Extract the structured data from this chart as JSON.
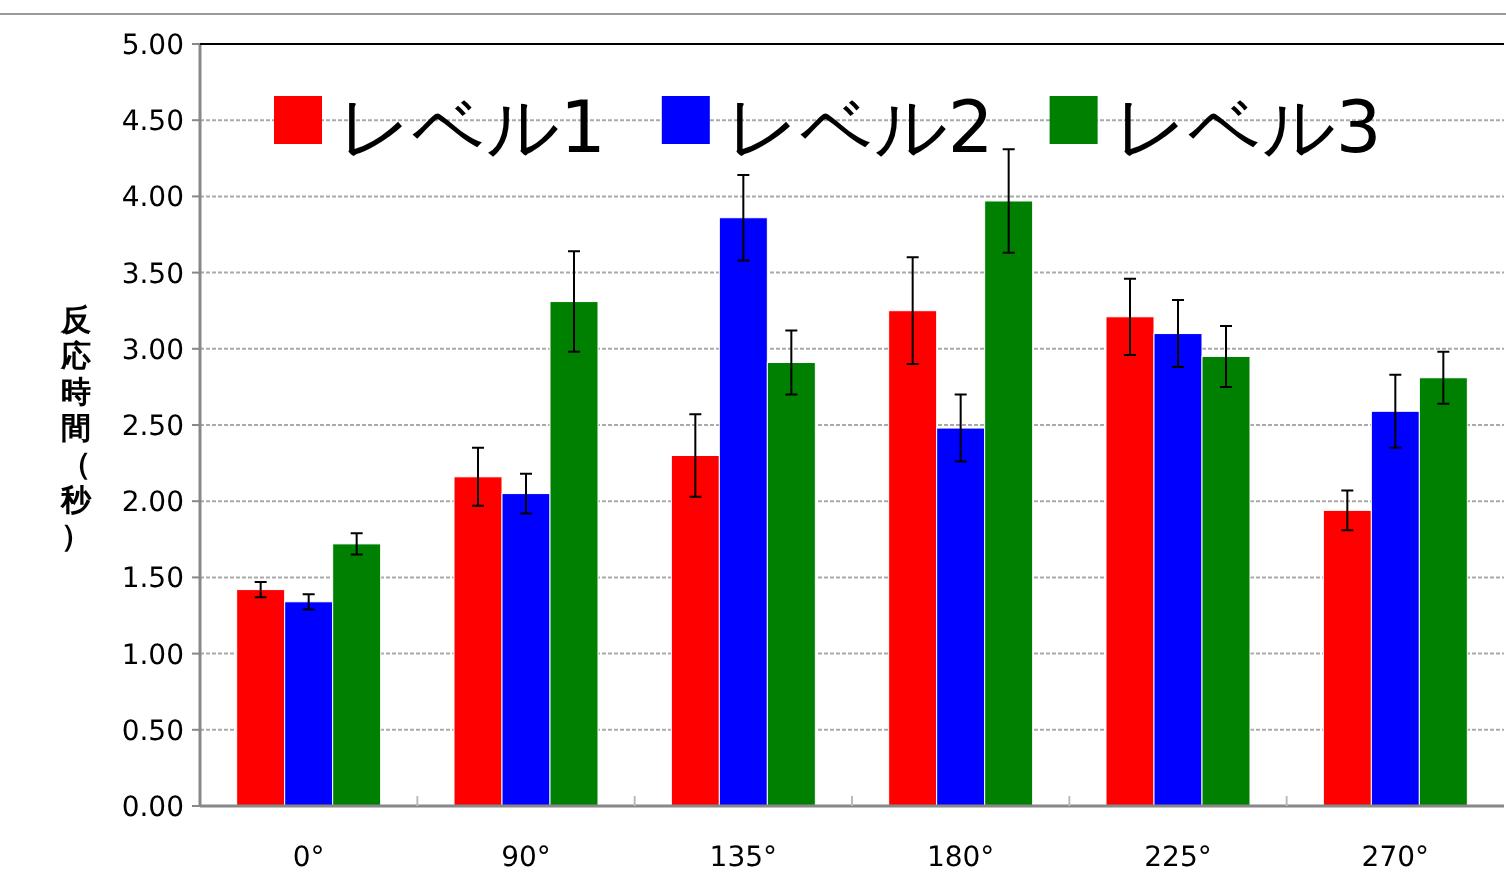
{
  "chart_data": {
    "type": "bar",
    "ylabel": "反応時間（秒）",
    "categories": [
      "0°",
      "90°",
      "135°",
      "180°",
      "225°",
      "270°"
    ],
    "series": [
      {
        "name": "レベル1",
        "color": "#ff0000",
        "values": [
          1.42,
          2.16,
          2.3,
          3.25,
          3.21,
          1.94
        ],
        "errors": [
          0.05,
          0.19,
          0.27,
          0.35,
          0.25,
          0.13
        ]
      },
      {
        "name": "レベル2",
        "color": "#0000ff",
        "values": [
          1.34,
          2.05,
          3.86,
          2.48,
          3.1,
          2.59
        ],
        "errors": [
          0.05,
          0.13,
          0.28,
          0.22,
          0.22,
          0.24
        ]
      },
      {
        "name": "レベル3",
        "color": "#008000",
        "values": [
          1.72,
          3.31,
          2.91,
          3.97,
          2.95,
          2.81
        ],
        "errors": [
          0.07,
          0.33,
          0.21,
          0.34,
          0.2,
          0.17
        ]
      }
    ],
    "ylim": [
      0,
      5
    ],
    "yticks": [
      {
        "value": 0,
        "label": "0.00"
      },
      {
        "value": 0.5,
        "label": "0.50"
      },
      {
        "value": 1,
        "label": "1.00"
      },
      {
        "value": 1.5,
        "label": "1.50"
      },
      {
        "value": 2,
        "label": "2.00"
      },
      {
        "value": 2.5,
        "label": "2.50"
      },
      {
        "value": 3,
        "label": "3.00"
      },
      {
        "value": 3.5,
        "label": "3.50"
      },
      {
        "value": 4,
        "label": "4.00"
      },
      {
        "value": 4.5,
        "label": "4.50"
      },
      {
        "value": 5,
        "label": "5.00"
      }
    ],
    "grid": "y",
    "legend": "top"
  }
}
